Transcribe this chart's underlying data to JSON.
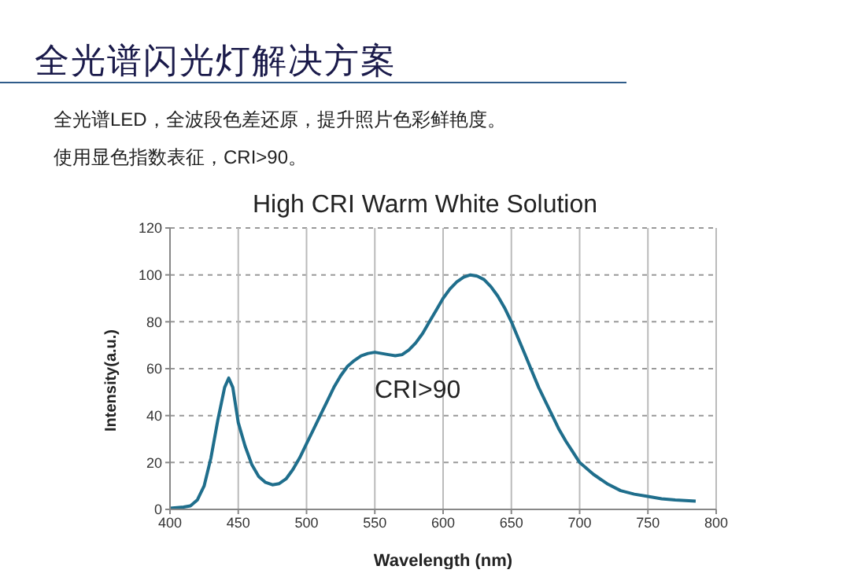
{
  "chart_data": {
    "type": "line",
    "title": "High CRI Warm White Solution",
    "subtitle": "全光谱闪光灯解决方案",
    "annotations": [
      "全光谱LED，全波段色差还原，提升照片色彩鲜艳度。",
      "使用显色指数表征，CRI>90。",
      "CRI>90"
    ],
    "xlabel": "Wavelength (nm)",
    "ylabel": "Intensity(a.u.)",
    "series": [
      {
        "color": "#1f6e8c",
        "x": [
          400,
          410,
          415,
          420,
          425,
          430,
          435,
          440,
          443,
          446,
          450,
          455,
          460,
          465,
          470,
          475,
          480,
          485,
          490,
          495,
          500,
          505,
          510,
          515,
          520,
          525,
          530,
          535,
          540,
          545,
          550,
          555,
          560,
          565,
          570,
          575,
          580,
          585,
          590,
          595,
          600,
          605,
          610,
          615,
          620,
          625,
          630,
          635,
          640,
          645,
          650,
          655,
          660,
          665,
          670,
          675,
          680,
          685,
          690,
          695,
          700,
          710,
          720,
          730,
          740,
          750,
          760,
          770,
          785
        ],
        "values": [
          0.5,
          1,
          1.5,
          4,
          10,
          22,
          38,
          52,
          56,
          52,
          37,
          27,
          19,
          14,
          11.5,
          10.5,
          11,
          13,
          17,
          22,
          28,
          34,
          40,
          46,
          52,
          57,
          61,
          63.5,
          65.5,
          66.5,
          67,
          66.5,
          66,
          65.5,
          66,
          68,
          71,
          75,
          80,
          85,
          90,
          94,
          97,
          99,
          100,
          99.5,
          98,
          95,
          91,
          86,
          80,
          73,
          66,
          59,
          52,
          46,
          40,
          34,
          29,
          24.5,
          20,
          15,
          11,
          8,
          6.5,
          5.5,
          4.5,
          4,
          3.5
        ]
      }
    ],
    "xlim": [
      400,
      800
    ],
    "xticks": [
      400,
      450,
      500,
      550,
      600,
      650,
      700,
      750,
      800
    ],
    "ylim": [
      0,
      120
    ],
    "yticks": [
      0,
      20,
      40,
      60,
      80,
      100,
      120
    ],
    "grid": true,
    "marker": "none",
    "line_style": "solid"
  }
}
